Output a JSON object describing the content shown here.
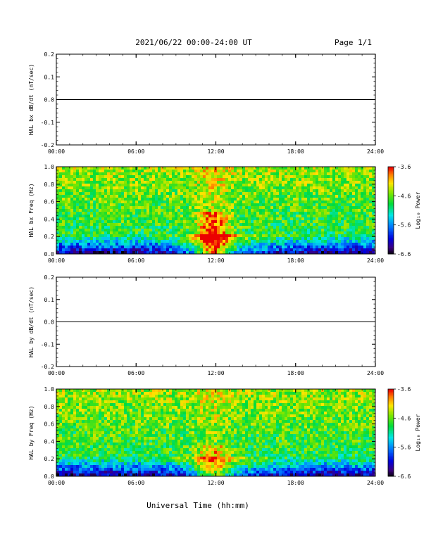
{
  "header": {
    "title": "2021/06/22  00:00-24:00 UT",
    "page": "Page 1/1"
  },
  "footer": {
    "xlabel": "Universal Time (hh:mm)"
  },
  "chart_data": [
    {
      "type": "line",
      "ylabel": "HAL bx dB/dt (nT/sec)",
      "ylim": [
        -0.2,
        0.2
      ],
      "yticks": [
        "0.2",
        "0.1",
        "0.0",
        "-0.1",
        "-0.2"
      ],
      "xticks": [
        "00:00",
        "06:00",
        "12:00",
        "18:00",
        "24:00"
      ],
      "xlim": [
        0,
        24
      ],
      "series": [
        {
          "x": [
            0,
            24
          ],
          "y": [
            0.0,
            0.0
          ]
        }
      ]
    },
    {
      "type": "heatmap",
      "ylabel": "HAL bx Freq (Hz)",
      "ylim": [
        0,
        1.0
      ],
      "yticks": [
        "1.0",
        "0.8",
        "0.6",
        "0.4",
        "0.2",
        "0.0"
      ],
      "xticks": [
        "00:00",
        "06:00",
        "12:00",
        "18:00",
        "24:00"
      ],
      "xlim": [
        0,
        24
      ],
      "colorbar": {
        "label": "Log₁₀ Power",
        "ticks": [
          "-3.6",
          "-4.6",
          "-5.6",
          "-6.6"
        ],
        "range": [
          -6.6,
          -3.6
        ]
      }
    },
    {
      "type": "line",
      "ylabel": "HAL by dB/dt (nT/sec)",
      "ylim": [
        -0.2,
        0.2
      ],
      "yticks": [
        "0.2",
        "0.1",
        "0.0",
        "-0.1",
        "-0.2"
      ],
      "xticks": [
        "00:00",
        "06:00",
        "12:00",
        "18:00",
        "24:00"
      ],
      "xlim": [
        0,
        24
      ],
      "series": [
        {
          "x": [
            0,
            24
          ],
          "y": [
            0.0,
            0.0
          ]
        }
      ]
    },
    {
      "type": "heatmap",
      "ylabel": "HAL by Freq (Hz)",
      "ylim": [
        0,
        1.0
      ],
      "yticks": [
        "1.0",
        "0.8",
        "0.6",
        "0.4",
        "0.2",
        "0.0"
      ],
      "xticks": [
        "00:00",
        "06:00",
        "12:00",
        "18:00",
        "24:00"
      ],
      "xlim": [
        0,
        24
      ],
      "colorbar": {
        "label": "Log₁₀ Power",
        "ticks": [
          "-3.6",
          "-4.6",
          "-5.6",
          "-6.6"
        ],
        "range": [
          -6.6,
          -3.6
        ]
      }
    }
  ]
}
